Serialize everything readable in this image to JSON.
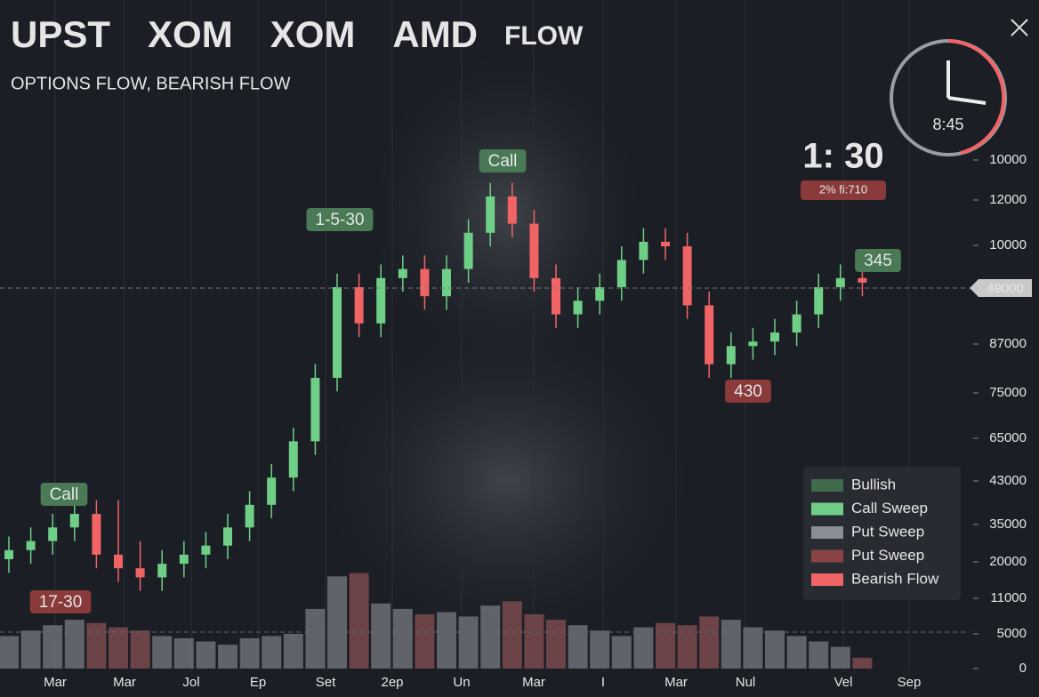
{
  "chart_data": {
    "type": "candlestick",
    "tickers": [
      "UPST",
      "XOM",
      "XOM",
      "AMD"
    ],
    "flow_tag": "FLOW",
    "subtitle": "OPTIONS FLOW, BEARISH FLOW",
    "clock": "8:45",
    "countdown": "1: 30",
    "change_chip": "2% fi:710",
    "price_tag": "49000",
    "price_axis_labels": [
      "10000",
      "12000",
      "10000",
      "87000",
      "75000",
      "65000",
      "43000",
      "35000",
      "20000",
      "11000",
      "5000",
      "0"
    ],
    "x_labels": [
      "Mar",
      "Mar",
      "Jol",
      "Ep",
      "Set",
      "2ep",
      "Un",
      "Mar",
      "I",
      "Mar",
      "Nul",
      "Vel",
      "Sep"
    ],
    "annotations": [
      {
        "text": "Call",
        "kind": "bullish"
      },
      {
        "text": "17-30",
        "kind": "bearish"
      },
      {
        "text": "1-5-30",
        "kind": "bullish"
      },
      {
        "text": "Call",
        "kind": "bullish"
      },
      {
        "text": "345",
        "kind": "bullish"
      },
      {
        "text": "430",
        "kind": "bearish"
      }
    ],
    "legend": [
      {
        "name": "Bullish",
        "color": "#3f6b4c"
      },
      {
        "name": "Call Sweep",
        "color": "#6fcf86"
      },
      {
        "name": "Put Sweep",
        "color": "#8a8d93"
      },
      {
        "name": "Put Sweep",
        "color": "#8a4446"
      },
      {
        "name": "Bearish Flow",
        "color": "#f06466"
      }
    ],
    "up_color": "#6fcf86",
    "down_color": "#f06466",
    "ylim": [
      0,
      100
    ],
    "volume_ylim": [
      0,
      100
    ],
    "open": [
      10,
      12,
      14,
      17,
      20,
      11,
      8,
      6,
      9,
      11,
      13,
      17,
      22,
      28,
      36,
      50,
      70,
      62,
      72,
      74,
      68,
      74,
      82,
      90,
      84,
      72,
      64,
      67,
      70,
      76,
      80,
      79,
      66,
      53,
      57,
      58,
      60,
      64,
      70,
      72
    ],
    "high": [
      15,
      17,
      20,
      23,
      23,
      23,
      14,
      12,
      14,
      16,
      20,
      25,
      31,
      39,
      53,
      73,
      73,
      75,
      77,
      77,
      77,
      85,
      93,
      93,
      87,
      75,
      70,
      73,
      79,
      83,
      83,
      82,
      69,
      60,
      61,
      63,
      67,
      73,
      75,
      75
    ],
    "low": [
      7,
      9,
      11,
      14,
      8,
      5,
      3,
      3,
      6,
      8,
      10,
      14,
      19,
      25,
      33,
      47,
      59,
      59,
      69,
      65,
      65,
      71,
      79,
      81,
      69,
      61,
      61,
      64,
      67,
      73,
      76,
      63,
      50,
      50,
      54,
      55,
      57,
      61,
      67,
      68
    ],
    "close": [
      12,
      14,
      17,
      20,
      11,
      8,
      6,
      9,
      11,
      13,
      17,
      22,
      28,
      36,
      50,
      70,
      62,
      72,
      74,
      68,
      74,
      82,
      90,
      84,
      72,
      64,
      67,
      70,
      76,
      80,
      79,
      66,
      53,
      57,
      58,
      60,
      64,
      70,
      72,
      71
    ],
    "volume": [
      30,
      35,
      40,
      45,
      42,
      38,
      35,
      30,
      28,
      25,
      22,
      28,
      30,
      32,
      55,
      85,
      88,
      60,
      55,
      50,
      52,
      48,
      58,
      62,
      50,
      45,
      40,
      35,
      30,
      38,
      42,
      40,
      48,
      45,
      38,
      35,
      30,
      25,
      20,
      10
    ]
  }
}
